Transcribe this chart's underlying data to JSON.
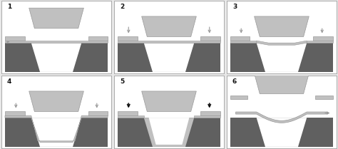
{
  "dark_gray": "#606060",
  "mid_gray": "#999999",
  "light_gray": "#c0c0c0",
  "white": "#ffffff",
  "black": "#111111",
  "bg": "#e8e8e8",
  "border": "#aaaaaa",
  "labels": [
    "1",
    "2",
    "3",
    "4",
    "5",
    "6"
  ]
}
